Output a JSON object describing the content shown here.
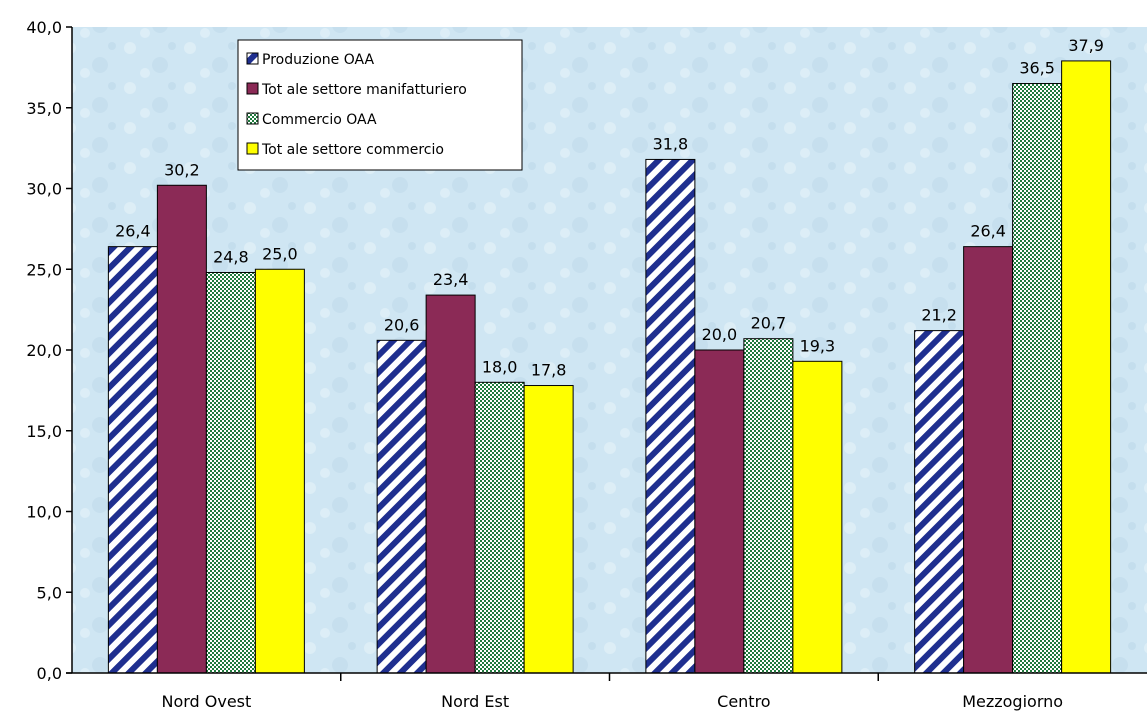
{
  "chart_data": {
    "type": "bar",
    "categories": [
      "Nord Ovest",
      "Nord Est",
      "Centro",
      "Mezzogiorno"
    ],
    "series": [
      {
        "name": "Produzione OAA",
        "values": [
          26.4,
          20.6,
          31.8,
          21.2
        ],
        "value_labels": [
          "26,4",
          "20,6",
          "31,8",
          "21,2"
        ],
        "fill": "diagonal-stripes",
        "color": "#1f2f8f"
      },
      {
        "name": "Tot ale settore manifatturiero",
        "values": [
          30.2,
          23.4,
          20.0,
          26.4
        ],
        "value_labels": [
          "30,2",
          "23,4",
          "20,0",
          "26,4"
        ],
        "fill": "solid",
        "color": "#8b2a56"
      },
      {
        "name": "Commercio OAA",
        "values": [
          24.8,
          18.0,
          20.7,
          36.5
        ],
        "value_labels": [
          "24,8",
          "18,0",
          "20,7",
          "36,5"
        ],
        "fill": "dots",
        "color": "#1e7a3c"
      },
      {
        "name": "Tot ale settore commercio",
        "values": [
          25.0,
          17.8,
          19.3,
          37.9
        ],
        "value_labels": [
          "25,0",
          "17,8",
          "19,3",
          "37,9"
        ],
        "fill": "solid",
        "color": "#ffff00"
      }
    ],
    "ylim": [
      0,
      40
    ],
    "yticks": [
      "0,0",
      "5,0",
      "10,0",
      "15,0",
      "20,0",
      "25,0",
      "30,0",
      "35,0",
      "40,0"
    ],
    "title": "",
    "xlabel": "",
    "ylabel": "",
    "legend_position": "top-left",
    "grid": false,
    "plot_background": "#cfe6f3"
  }
}
